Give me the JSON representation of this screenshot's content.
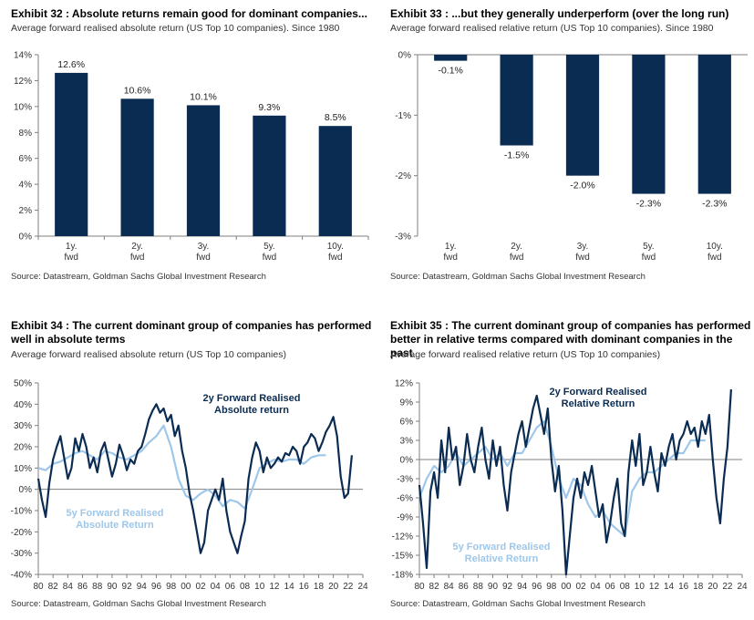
{
  "exhibits": [
    {
      "title": "Exhibit 32 : Absolute returns remain good for dominant companies...",
      "subtitle": "Average forward realised absolute return (US Top 10 companies). Since 1980",
      "source": "Source: Datastream, Goldman Sachs Global Investment Research"
    },
    {
      "title": "Exhibit 33 : ...but they generally underperform (over the long run)",
      "subtitle": "Average forward realised relative return (US Top 10 companies). Since 1980",
      "source": "Source: Datastream, Goldman Sachs Global Investment Research"
    },
    {
      "title": "Exhibit 34 : The current dominant group of companies has performed well in absolute terms",
      "subtitle": "Average forward realised absolute return (US Top 10 companies)",
      "source": "Source: Datastream, Goldman Sachs Global Investment Research"
    },
    {
      "title": "Exhibit 35 : The current dominant group of companies has performed better in relative terms compared with dominant companies in the past",
      "subtitle": "Average forward realised relative return (US Top 10 companies)",
      "source": "Source: Datastream, Goldman Sachs Global Investment Research"
    }
  ],
  "colors": {
    "dark": "#0b2c52",
    "light": "#9ec7ea",
    "axis": "#7f7f7f"
  },
  "chart_data": [
    {
      "type": "bar",
      "categories": [
        [
          "1y.",
          "fwd"
        ],
        [
          "2y.",
          "fwd"
        ],
        [
          "3y.",
          "fwd"
        ],
        [
          "5y.",
          "fwd"
        ],
        [
          "10y.",
          "fwd"
        ]
      ],
      "values": [
        12.6,
        10.6,
        10.1,
        9.3,
        8.5
      ],
      "data_labels": [
        "12.6%",
        "10.6%",
        "10.1%",
        "9.3%",
        "8.5%"
      ],
      "yticks": [
        "0%",
        "2%",
        "4%",
        "6%",
        "8%",
        "10%",
        "12%",
        "14%"
      ],
      "ylim": [
        0,
        14
      ]
    },
    {
      "type": "bar",
      "categories": [
        [
          "1y.",
          "fwd"
        ],
        [
          "2y.",
          "fwd"
        ],
        [
          "3y.",
          "fwd"
        ],
        [
          "5y.",
          "fwd"
        ],
        [
          "10y.",
          "fwd"
        ]
      ],
      "values": [
        -0.1,
        -1.5,
        -2.0,
        -2.3,
        -2.3
      ],
      "data_labels": [
        "-0.1%",
        "-1.5%",
        "-2.0%",
        "-2.3%",
        "-2.3%"
      ],
      "yticks": [
        "-3%",
        "-2%",
        "-1%",
        "0%"
      ],
      "ylim": [
        -3,
        0
      ]
    },
    {
      "type": "line",
      "xticks": [
        "80",
        "82",
        "84",
        "86",
        "88",
        "90",
        "92",
        "94",
        "96",
        "98",
        "00",
        "02",
        "04",
        "06",
        "08",
        "10",
        "12",
        "14",
        "16",
        "18",
        "20",
        "22",
        "24"
      ],
      "yticks": [
        "-40%",
        "-30%",
        "-20%",
        "-10%",
        "0%",
        "10%",
        "20%",
        "30%",
        "40%",
        "50%"
      ],
      "ylim": [
        -40,
        50
      ],
      "xlim": [
        1980,
        2024
      ],
      "annotations": [
        {
          "text": [
            "2y Forward Realised",
            "Absolute return"
          ],
          "series": 0
        },
        {
          "text": [
            "5y Forward Realised",
            "Absolute Return"
          ],
          "series": 1
        }
      ],
      "series": [
        {
          "name": "2y Forward Realised Absolute return",
          "x": [
            1980,
            1980.5,
            1981,
            1981.5,
            1982,
            1982.5,
            1983,
            1983.5,
            1984,
            1984.5,
            1985,
            1985.5,
            1986,
            1986.5,
            1987,
            1987.5,
            1988,
            1988.5,
            1989,
            1989.5,
            1990,
            1990.5,
            1991,
            1991.5,
            1992,
            1992.5,
            1993,
            1993.5,
            1994,
            1994.5,
            1995,
            1995.5,
            1996,
            1996.5,
            1997,
            1997.5,
            1998,
            1998.5,
            1999,
            1999.5,
            2000,
            2000.5,
            2001,
            2001.5,
            2002,
            2002.5,
            2003,
            2003.5,
            2004,
            2004.5,
            2005,
            2005.5,
            2006,
            2006.5,
            2007,
            2007.5,
            2008,
            2008.5,
            2009,
            2009.5,
            2010,
            2010.5,
            2011,
            2011.5,
            2012,
            2012.5,
            2013,
            2013.5,
            2014,
            2014.5,
            2015,
            2015.5,
            2016,
            2016.5,
            2017,
            2017.5,
            2018,
            2018.5,
            2019,
            2019.5,
            2020,
            2020.5,
            2021,
            2021.5,
            2022,
            2022.5
          ],
          "y": [
            5,
            -5,
            -13,
            3,
            14,
            20,
            25,
            15,
            5,
            10,
            24,
            18,
            26,
            20,
            10,
            15,
            8,
            18,
            22,
            14,
            6,
            12,
            21,
            16,
            9,
            14,
            12,
            18,
            20,
            26,
            33,
            37,
            40,
            36,
            38,
            32,
            35,
            25,
            30,
            18,
            10,
            -2,
            -10,
            -20,
            -30,
            -25,
            -10,
            -5,
            0,
            -5,
            5,
            -10,
            -20,
            -25,
            -30,
            -22,
            -15,
            5,
            15,
            22,
            18,
            8,
            15,
            10,
            12,
            15,
            13,
            17,
            16,
            20,
            18,
            12,
            20,
            22,
            26,
            24,
            18,
            22,
            27,
            30,
            34,
            25,
            6,
            -4,
            -2,
            16
          ]
        },
        {
          "name": "5y Forward Realised Absolute Return",
          "x": [
            1980,
            1981,
            1982,
            1983,
            1984,
            1985,
            1986,
            1987,
            1988,
            1989,
            1990,
            1991,
            1992,
            1993,
            1994,
            1995,
            1996,
            1997,
            1998,
            1999,
            2000,
            2001,
            2002,
            2003,
            2004,
            2005,
            2006,
            2007,
            2008,
            2009,
            2010,
            2011,
            2012,
            2013,
            2014,
            2015,
            2016,
            2017,
            2018,
            2019
          ],
          "y": [
            10,
            9,
            12,
            13,
            15,
            17,
            18,
            16,
            14,
            18,
            17,
            15,
            14,
            16,
            18,
            22,
            25,
            30,
            20,
            5,
            -3,
            -5,
            -2,
            0,
            -3,
            -8,
            -5,
            -6,
            -9,
            0,
            10,
            12,
            14,
            13,
            14,
            14,
            12,
            15,
            16,
            16
          ]
        }
      ]
    },
    {
      "type": "line",
      "xticks": [
        "80",
        "82",
        "84",
        "86",
        "88",
        "90",
        "92",
        "94",
        "96",
        "98",
        "00",
        "02",
        "04",
        "06",
        "08",
        "10",
        "12",
        "14",
        "16",
        "18",
        "20",
        "22",
        "24"
      ],
      "yticks": [
        "-18%",
        "-15%",
        "-12%",
        "-9%",
        "-6%",
        "-3%",
        "0%",
        "3%",
        "6%",
        "9%",
        "12%"
      ],
      "ylim": [
        -18,
        12
      ],
      "xlim": [
        1980,
        2024
      ],
      "annotations": [
        {
          "text": [
            "2y Forward Realised",
            "Relative Return"
          ],
          "series": 0
        },
        {
          "text": [
            "5y Forward Realised",
            "Relative Return"
          ],
          "series": 1
        }
      ],
      "series": [
        {
          "name": "2y Forward Realised Relative Return",
          "x": [
            1980,
            1980.5,
            1981,
            1981.5,
            1982,
            1982.5,
            1983,
            1983.5,
            1984,
            1984.5,
            1985,
            1985.5,
            1986,
            1986.5,
            1987,
            1987.5,
            1988,
            1988.5,
            1989,
            1989.5,
            1990,
            1990.5,
            1991,
            1991.5,
            1992,
            1992.5,
            1993,
            1993.5,
            1994,
            1994.5,
            1995,
            1995.5,
            1996,
            1996.5,
            1997,
            1997.5,
            1998,
            1998.5,
            1999,
            1999.5,
            2000,
            2000.5,
            2001,
            2001.5,
            2002,
            2002.5,
            2003,
            2003.5,
            2004,
            2004.5,
            2005,
            2005.5,
            2006,
            2006.5,
            2007,
            2007.5,
            2008,
            2008.5,
            2009,
            2009.5,
            2010,
            2010.5,
            2011,
            2011.5,
            2012,
            2012.5,
            2013,
            2013.5,
            2014,
            2014.5,
            2015,
            2015.5,
            2016,
            2016.5,
            2017,
            2017.5,
            2018,
            2018.5,
            2019,
            2019.5,
            2020,
            2020.5,
            2021,
            2021.5,
            2022,
            2022.5
          ],
          "y": [
            -4,
            -10,
            -17,
            -5,
            -2,
            -6,
            3,
            -2,
            5,
            0,
            2,
            -4,
            -1,
            4,
            0,
            -2,
            2,
            5,
            0,
            -3,
            3,
            -1,
            2,
            -4,
            -8,
            -2,
            1,
            4,
            6,
            2,
            5,
            8,
            10,
            7,
            4,
            8,
            0,
            -5,
            -1,
            -8,
            -18,
            -12,
            -6,
            -3,
            -6,
            -2,
            -4,
            -1,
            -5,
            -9,
            -7,
            -13,
            -10,
            -6,
            -3,
            -10,
            -12,
            -2,
            3,
            -1,
            4,
            -4,
            -2,
            2,
            -2,
            -5,
            1,
            -1,
            2,
            4,
            0,
            3,
            4,
            6,
            4,
            5,
            2,
            6,
            4,
            7,
            0,
            -6,
            -10,
            -3,
            2,
            11
          ]
        },
        {
          "name": "5y Forward Realised Relative Return",
          "x": [
            1980,
            1981,
            1982,
            1983,
            1984,
            1985,
            1986,
            1987,
            1988,
            1989,
            1990,
            1991,
            1992,
            1993,
            1994,
            1995,
            1996,
            1997,
            1998,
            1999,
            2000,
            2001,
            2002,
            2003,
            2004,
            2005,
            2006,
            2007,
            2008,
            2009,
            2010,
            2011,
            2012,
            2013,
            2014,
            2015,
            2016,
            2017,
            2018,
            2019
          ],
          "y": [
            -6,
            -3,
            -1,
            -2,
            -1,
            1,
            -1,
            0,
            1,
            2,
            0,
            1,
            -1,
            1,
            1,
            3,
            5,
            6,
            2,
            -3,
            -6,
            -3,
            -4,
            -7,
            -9,
            -8,
            -10,
            -11,
            -12,
            -5,
            -3,
            -2,
            -2,
            -1,
            0,
            1,
            1,
            3,
            3,
            3
          ]
        }
      ]
    }
  ]
}
